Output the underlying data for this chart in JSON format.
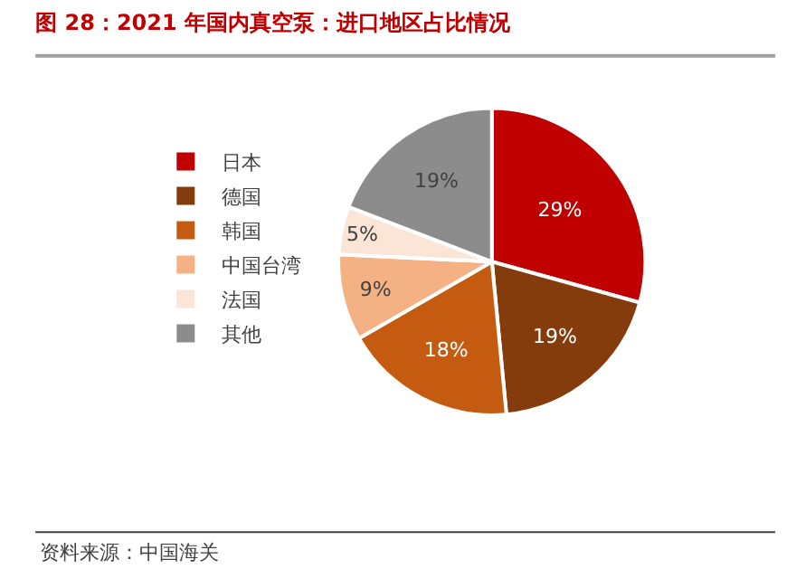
{
  "chart_data": {
    "type": "pie",
    "title": "图 28：2021 年国内真空泵：进口地区占比情况",
    "categories": [
      "日本",
      "德国",
      "韩国",
      "中国台湾",
      "法国",
      "其他"
    ],
    "values": [
      29,
      19,
      18,
      9,
      5,
      19
    ],
    "colors": [
      "#c00000",
      "#843c0c",
      "#c55a11",
      "#f4b183",
      "#fbe5d6",
      "#8c8c8c"
    ],
    "value_labels": [
      "29%",
      "19%",
      "18%",
      "9%",
      "5%",
      "19%"
    ],
    "legend": "left",
    "annotations": [
      "资料来源：中国海关"
    ]
  }
}
